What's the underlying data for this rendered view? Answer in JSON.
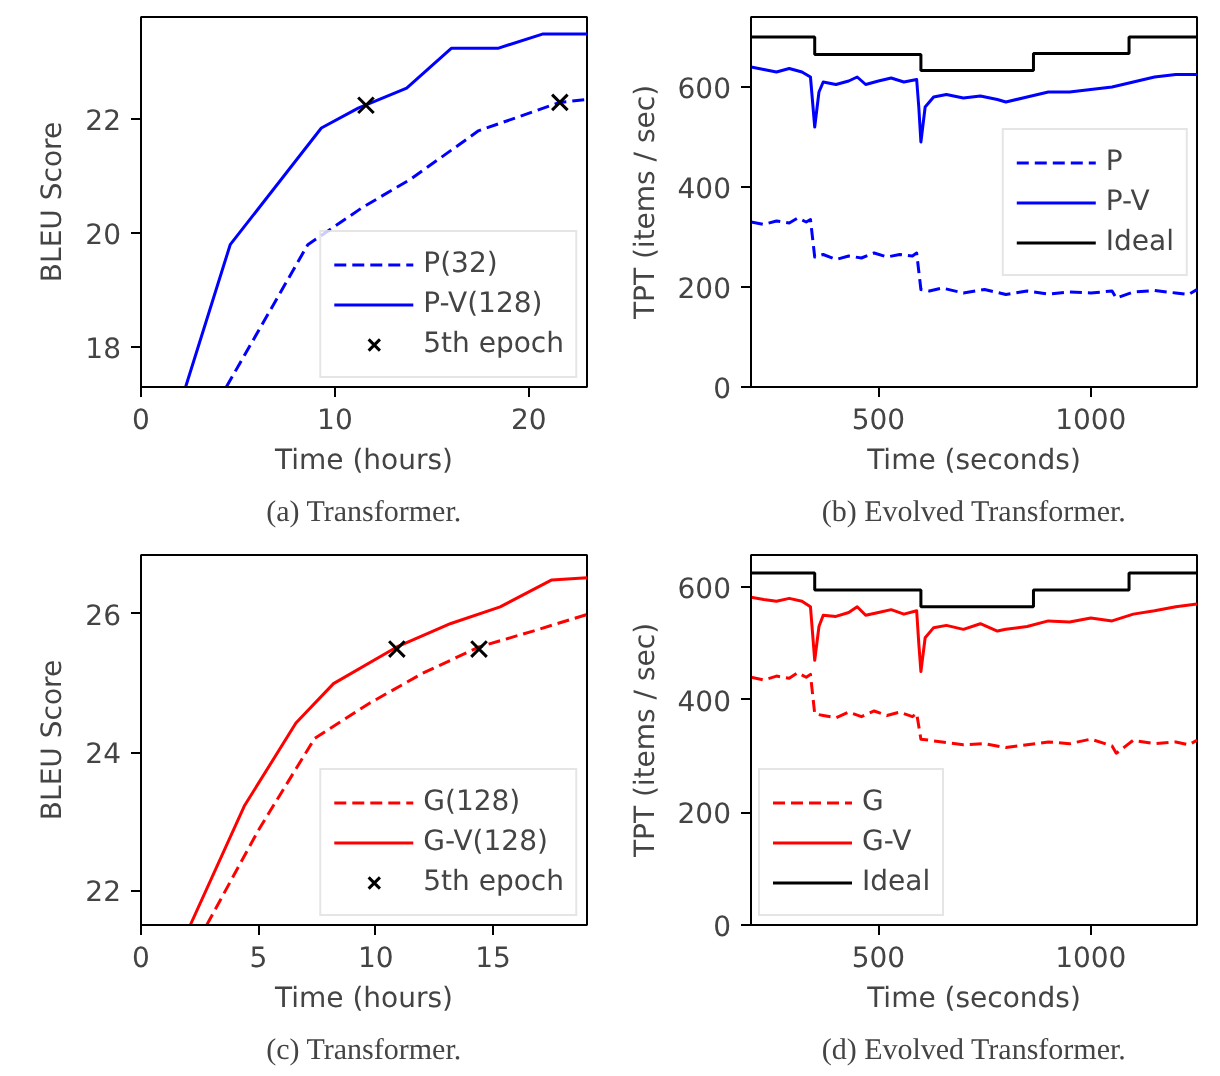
{
  "chart_data": [
    {
      "type": "line",
      "title": "(a) Transformer.",
      "xlabel": "Time (hours)",
      "ylabel": "BLEU Score",
      "xlim": [
        0,
        23
      ],
      "ylim": [
        17.3,
        23.8
      ],
      "xticks": [
        0,
        10,
        20
      ],
      "yticks": [
        18,
        20,
        22
      ],
      "legend": "bottom right",
      "grid": false,
      "series": [
        {
          "name": "P(32)",
          "color": "#0000ff",
          "line_style": "dashed",
          "x": [
            4.4,
            8.6,
            11.4,
            13.9,
            17.4,
            21.6,
            23
          ],
          "values": [
            17.3,
            19.8,
            20.45,
            20.95,
            21.8,
            22.3,
            22.35
          ]
        },
        {
          "name": "P-V(128)",
          "color": "#0000ff",
          "line_style": "solid",
          "x": [
            2.3,
            4.6,
            9.3,
            11.2,
            13.7,
            16,
            18.4,
            20.7,
            23
          ],
          "values": [
            17.3,
            19.8,
            21.85,
            22.2,
            22.55,
            23.25,
            23.25,
            23.5,
            23.5
          ]
        },
        {
          "name": "5th epoch",
          "type": "scatter",
          "marker": "cross",
          "color": "#000000",
          "x": [
            11.6,
            21.6
          ],
          "values": [
            22.25,
            22.3
          ]
        }
      ]
    },
    {
      "type": "line",
      "title": "(b) Evolved Transformer.",
      "xlabel": "Time (seconds)",
      "ylabel": "TPT (items / sec)",
      "xlim": [
        200,
        1250
      ],
      "ylim": [
        0,
        740
      ],
      "xticks": [
        500,
        1000
      ],
      "yticks": [
        0,
        200,
        400,
        600
      ],
      "legend": "right",
      "grid": false,
      "series": [
        {
          "name": "P",
          "color": "#0000ff",
          "line_style": "dashed",
          "x": [
            200,
            230,
            260,
            290,
            310,
            330,
            340,
            350,
            370,
            400,
            430,
            460,
            490,
            520,
            550,
            580,
            590,
            600,
            620,
            650,
            700,
            750,
            800,
            850,
            900,
            950,
            1000,
            1050,
            1060,
            1100,
            1150,
            1200,
            1230,
            1250
          ],
          "values": [
            330,
            325,
            332,
            328,
            338,
            330,
            335,
            260,
            265,
            255,
            262,
            258,
            268,
            260,
            265,
            262,
            268,
            195,
            192,
            198,
            188,
            195,
            185,
            192,
            186,
            190,
            188,
            192,
            178,
            190,
            193,
            188,
            185,
            195
          ]
        },
        {
          "name": "P-V",
          "color": "#0000ff",
          "line_style": "solid",
          "x": [
            200,
            230,
            260,
            290,
            320,
            340,
            350,
            360,
            370,
            400,
            430,
            450,
            470,
            500,
            530,
            560,
            590,
            595,
            600,
            610,
            630,
            660,
            700,
            740,
            780,
            800,
            850,
            900,
            950,
            1000,
            1050,
            1100,
            1150,
            1200,
            1250
          ],
          "values": [
            640,
            635,
            630,
            637,
            630,
            620,
            520,
            590,
            610,
            605,
            612,
            620,
            605,
            612,
            618,
            610,
            615,
            560,
            490,
            560,
            580,
            585,
            578,
            582,
            575,
            570,
            580,
            590,
            590,
            595,
            600,
            610,
            620,
            625,
            625
          ]
        },
        {
          "name": "Ideal",
          "type": "step",
          "color": "#000000",
          "line_style": "solid",
          "x": [
            200,
            350,
            600,
            865,
            1090,
            1250
          ],
          "values": [
            700,
            665,
            633,
            667,
            700,
            700
          ]
        }
      ]
    },
    {
      "type": "line",
      "title": "(c) Transformer.",
      "xlabel": "Time (hours)",
      "ylabel": "BLEU Score",
      "xlim": [
        0,
        19
      ],
      "ylim": [
        21.5,
        26.85
      ],
      "xticks": [
        0,
        5,
        10,
        15
      ],
      "yticks": [
        22,
        24,
        26
      ],
      "legend": "bottom right",
      "grid": false,
      "series": [
        {
          "name": "G(128)",
          "color": "#ff0000",
          "line_style": "dashed",
          "x": [
            2.8,
            5.0,
            7.4,
            9.7,
            12.0,
            14.4,
            16.7,
            19
          ],
          "values": [
            21.5,
            22.87,
            24.2,
            24.7,
            25.14,
            25.52,
            25.75,
            25.99
          ]
        },
        {
          "name": "G-V(128)",
          "color": "#ff0000",
          "line_style": "solid",
          "x": [
            2.1,
            4.4,
            6.6,
            8.2,
            10.9,
            13.2,
            15.3,
            17.5,
            19
          ],
          "values": [
            21.5,
            23.22,
            24.42,
            24.99,
            25.52,
            25.86,
            26.1,
            26.49,
            26.52
          ]
        },
        {
          "name": "5th epoch",
          "type": "scatter",
          "marker": "cross",
          "color": "#000000",
          "x": [
            10.9,
            14.4
          ],
          "values": [
            25.49,
            25.49
          ]
        }
      ]
    },
    {
      "type": "line",
      "title": "(d) Evolved Transformer.",
      "xlabel": "Time (seconds)",
      "ylabel": "TPT (items / sec)",
      "xlim": [
        200,
        1250
      ],
      "ylim": [
        0,
        657
      ],
      "xticks": [
        500,
        1000
      ],
      "yticks": [
        0,
        200,
        400,
        600
      ],
      "legend": "bottom left",
      "grid": false,
      "series": [
        {
          "name": "G",
          "color": "#ff0000",
          "line_style": "dashed",
          "x": [
            200,
            230,
            260,
            290,
            310,
            330,
            340,
            350,
            370,
            400,
            430,
            460,
            490,
            520,
            550,
            580,
            590,
            600,
            620,
            650,
            700,
            750,
            800,
            850,
            900,
            950,
            1000,
            1050,
            1060,
            1100,
            1150,
            1200,
            1230,
            1250
          ],
          "values": [
            440,
            435,
            442,
            438,
            448,
            440,
            445,
            375,
            372,
            368,
            378,
            370,
            380,
            372,
            378,
            370,
            376,
            330,
            328,
            325,
            320,
            322,
            315,
            320,
            325,
            322,
            330,
            318,
            305,
            328,
            322,
            325,
            320,
            328
          ]
        },
        {
          "name": "G-V",
          "color": "#ff0000",
          "line_style": "solid",
          "x": [
            200,
            230,
            260,
            290,
            320,
            340,
            350,
            360,
            370,
            400,
            430,
            450,
            470,
            500,
            530,
            560,
            590,
            595,
            600,
            610,
            630,
            660,
            700,
            740,
            780,
            800,
            850,
            900,
            950,
            1000,
            1050,
            1100,
            1150,
            1200,
            1250
          ],
          "values": [
            582,
            578,
            575,
            580,
            575,
            565,
            470,
            530,
            550,
            548,
            555,
            565,
            550,
            555,
            560,
            552,
            558,
            500,
            450,
            510,
            528,
            532,
            525,
            535,
            522,
            525,
            530,
            540,
            538,
            545,
            540,
            552,
            558,
            565,
            570
          ]
        },
        {
          "name": "Ideal",
          "type": "step",
          "color": "#000000",
          "line_style": "solid",
          "x": [
            200,
            350,
            600,
            865,
            1090,
            1250
          ],
          "values": [
            625,
            595,
            565,
            595,
            625,
            625
          ]
        }
      ]
    }
  ]
}
